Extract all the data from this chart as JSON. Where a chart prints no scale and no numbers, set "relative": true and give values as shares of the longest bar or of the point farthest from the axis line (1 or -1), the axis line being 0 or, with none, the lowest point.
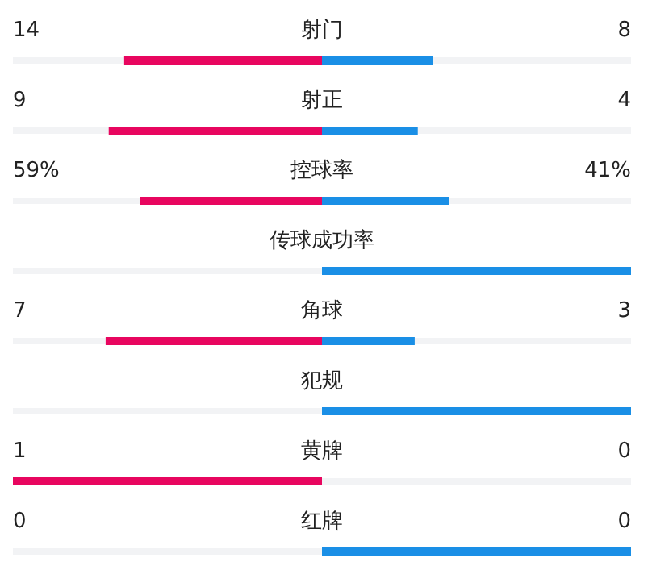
{
  "chart_data": {
    "type": "bar",
    "orientation": "horizontal",
    "relative": true,
    "stacked": true,
    "categories": [
      "射门",
      "射正",
      "控球率",
      "传球成功率",
      "角球",
      "犯规",
      "黄牌",
      "红牌"
    ],
    "series": [
      {
        "color": "#e8065f",
        "values": [
          -0.64,
          -0.69,
          -0.59,
          0,
          -0.7,
          0,
          -1,
          0
        ]
      },
      {
        "color": "#1a8fe6",
        "values": [
          0.36,
          0.31,
          0.41,
          1,
          0.3,
          1,
          0,
          1
        ]
      }
    ],
    "annotations": [
      "14",
      "8",
      "9",
      "4",
      "59%",
      "41%",
      "7",
      "3",
      "1",
      "0",
      "0",
      "0"
    ]
  }
}
